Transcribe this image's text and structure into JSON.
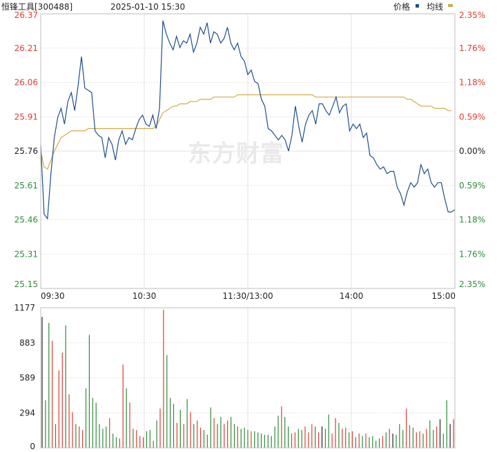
{
  "header": {
    "title": "恒锋工具[300488]",
    "datetime": "2025-01-10 15:30",
    "legend_price": "价格",
    "legend_avg": "均线"
  },
  "watermark": "东方财富",
  "colors": {
    "price_line": "#1f4e8c",
    "avg_line": "#d4a94a",
    "up": "#e03c31",
    "down": "#2e8b3a",
    "neutral": "#222222",
    "grid": "#e2e2e2",
    "border": "#bdbdbd"
  },
  "chart_data": [
    {
      "type": "line",
      "series": [
        {
          "name": "价格",
          "values": [
            25.79,
            25.48,
            25.46,
            25.66,
            25.82,
            25.91,
            25.95,
            25.88,
            25.98,
            26.02,
            25.94,
            26.05,
            26.18,
            26.04,
            26.03,
            26.02,
            25.85,
            25.83,
            25.82,
            25.73,
            25.82,
            25.79,
            25.72,
            25.81,
            25.85,
            25.79,
            25.82,
            25.81,
            25.86,
            25.9,
            25.92,
            25.88,
            25.87,
            25.92,
            25.86,
            25.95,
            26.34,
            26.28,
            26.24,
            26.21,
            26.27,
            26.22,
            26.25,
            26.24,
            26.28,
            26.2,
            26.24,
            26.31,
            26.28,
            26.33,
            26.24,
            26.29,
            26.28,
            26.24,
            26.26,
            26.31,
            26.24,
            26.21,
            26.24,
            26.18,
            26.16,
            26.1,
            26.12,
            26.07,
            26.06,
            25.99,
            25.96,
            25.86,
            25.85,
            25.83,
            25.81,
            25.83,
            25.81,
            25.76,
            25.83,
            25.96,
            25.87,
            25.8,
            25.88,
            25.92,
            25.94,
            25.88,
            25.97,
            25.97,
            25.94,
            25.92,
            25.96,
            26.0,
            25.93,
            25.96,
            25.97,
            25.85,
            25.88,
            25.86,
            25.88,
            25.82,
            25.84,
            25.74,
            25.73,
            25.7,
            25.68,
            25.69,
            25.66,
            25.67,
            25.67,
            25.6,
            25.57,
            25.52,
            25.58,
            25.62,
            25.6,
            25.62,
            25.7,
            25.66,
            25.68,
            25.62,
            25.6,
            25.62,
            25.62,
            25.55,
            25.49,
            25.49,
            25.5
          ],
          "color": "#1f4e8c"
        },
        {
          "name": "均线",
          "values": [
            25.76,
            25.69,
            25.68,
            25.72,
            25.76,
            25.79,
            25.82,
            25.83,
            25.84,
            25.85,
            25.85,
            25.85,
            25.85,
            25.85,
            25.86,
            25.86,
            25.86,
            25.86,
            25.86,
            25.86,
            25.86,
            25.86,
            25.86,
            25.86,
            25.86,
            25.86,
            25.86,
            25.86,
            25.86,
            25.86,
            25.86,
            25.86,
            25.86,
            25.86,
            25.87,
            25.9,
            25.93,
            25.94,
            25.95,
            25.96,
            25.96,
            25.97,
            25.97,
            25.97,
            25.98,
            25.98,
            25.98,
            25.99,
            25.99,
            25.99,
            25.99,
            26.0,
            26.0,
            26.0,
            26.0,
            26.0,
            26.0,
            26.0,
            26.01,
            26.01,
            26.01,
            26.01,
            26.01,
            26.01,
            26.01,
            26.01,
            26.01,
            26.01,
            26.01,
            26.01,
            26.01,
            26.01,
            26.01,
            26.01,
            26.01,
            26.01,
            26.01,
            26.01,
            26.01,
            26.01,
            26.01,
            26.0,
            26.0,
            26.0,
            26.0,
            26.0,
            26.0,
            26.0,
            26.0,
            26.0,
            26.0,
            26.0,
            26.0,
            26.0,
            26.0,
            26.0,
            26.0,
            26.0,
            26.0,
            26.0,
            26.0,
            26.0,
            26.0,
            26.0,
            26.0,
            26.0,
            26.0,
            26.0,
            25.99,
            25.99,
            25.98,
            25.97,
            25.96,
            25.96,
            25.96,
            25.96,
            25.95,
            25.95,
            25.95,
            25.95,
            25.94,
            25.94
          ],
          "color": "#d4a94a"
        }
      ],
      "y_ticks": [
        "26.37",
        "26.21",
        "26.06",
        "25.91",
        "25.76",
        "25.61",
        "25.46",
        "25.31",
        "25.15"
      ],
      "y_right_ticks": [
        "2.35%",
        "1.76%",
        "1.18%",
        "0.59%",
        "0.00%",
        "0.59%",
        "1.18%",
        "1.76%",
        "2.35%"
      ],
      "x_ticks": [
        "09:30",
        "10:30",
        "11:30/13:00",
        "14:00",
        "15:00"
      ],
      "ylim": [
        25.15,
        26.37
      ],
      "base_price": 25.76,
      "grid": true
    },
    {
      "type": "bar",
      "y_ticks": [
        "1177",
        "883",
        "589",
        "294",
        "0"
      ],
      "ylim": [
        0,
        1177
      ],
      "volumes": [
        1100,
        400,
        1050,
        900,
        200,
        650,
        800,
        1030,
        450,
        300,
        200,
        180,
        150,
        500,
        950,
        420,
        380,
        200,
        160,
        180,
        250,
        120,
        90,
        80,
        700,
        500,
        380,
        160,
        150,
        100,
        90,
        140,
        150,
        60,
        230,
        330,
        1160,
        780,
        420,
        370,
        210,
        320,
        200,
        410,
        300,
        200,
        230,
        170,
        150,
        110,
        340,
        250,
        200,
        260,
        200,
        230,
        260,
        200,
        180,
        160,
        170,
        150,
        140,
        140,
        130,
        120,
        110,
        110,
        100,
        180,
        270,
        350,
        260,
        180,
        120,
        130,
        160,
        150,
        180,
        130,
        200,
        180,
        130,
        180,
        160,
        280,
        120,
        250,
        210,
        160,
        170,
        130,
        140,
        90,
        120,
        100,
        120,
        90,
        100,
        60,
        80,
        100,
        130,
        160,
        120,
        110,
        200,
        150,
        330,
        190,
        170,
        130,
        140,
        120,
        160,
        230,
        150,
        180,
        240,
        120,
        400,
        200,
        240
      ],
      "directions": [
        0,
        -1,
        -1,
        1,
        -1,
        1,
        1,
        -1,
        1,
        1,
        -1,
        1,
        1,
        -1,
        -1,
        -1,
        -1,
        -1,
        -1,
        -1,
        1,
        -1,
        -1,
        1,
        1,
        -1,
        1,
        -1,
        1,
        1,
        1,
        -1,
        -1,
        1,
        -1,
        1,
        1,
        -1,
        -1,
        -1,
        1,
        -1,
        1,
        -1,
        1,
        -1,
        1,
        1,
        -1,
        1,
        -1,
        1,
        -1,
        -1,
        1,
        1,
        -1,
        -1,
        1,
        -1,
        -1,
        -1,
        1,
        -1,
        -1,
        -1,
        -1,
        -1,
        -1,
        -1,
        -1,
        1,
        -1,
        -1,
        1,
        1,
        -1,
        -1,
        1,
        1,
        1,
        -1,
        1,
        0,
        -1,
        -1,
        1,
        1,
        -1,
        1,
        1,
        -1,
        1,
        -1,
        1,
        -1,
        1,
        -1,
        -1,
        -1,
        -1,
        1,
        -1,
        1,
        0,
        -1,
        -1,
        -1,
        1,
        1,
        -1,
        1,
        1,
        -1,
        1,
        -1,
        -1,
        1,
        0,
        -1,
        -1,
        0,
        1
      ]
    }
  ]
}
